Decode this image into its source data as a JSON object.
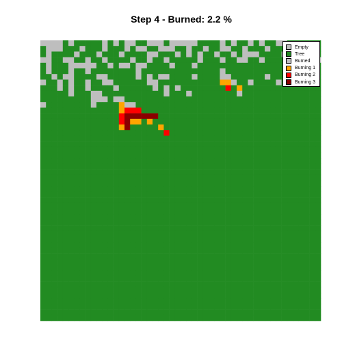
{
  "chart_data": {
    "type": "heatmap",
    "title": "Step 4 - Burned: 2.2 %",
    "step": 4,
    "burned_percent": 2.2,
    "grid_size": [
      50,
      50
    ],
    "state_colors": {
      "empty": "#bebebe",
      "tree": "#228b22",
      "burned": "#bebebe",
      "burning_1": "#ffa500",
      "burning_2": "#ff0000",
      "burning_3": "#8b0000"
    },
    "legend": {
      "placement": "top-right",
      "entries": [
        {
          "label": "Empty",
          "color": "#bebebe"
        },
        {
          "label": "Tree",
          "color": "#228b22"
        },
        {
          "label": "Burned",
          "color": "#bebebe"
        },
        {
          "label": "Burning 1",
          "color": "#ffa500"
        },
        {
          "label": "Burning 2",
          "color": "#ff0000"
        },
        {
          "label": "Burning 3",
          "color": "#8b0000"
        }
      ]
    },
    "grid_rows": [
      "EEEETETTTTTETETEETTEEETEEEEETTTTETETTETETTEETTTTTT",
      "TEEETTTETTTETTTETEETTEEETTETTETTEETTETTTETTTTTTTTT",
      "TETTTTETTTETTTETTTTEETTTETETETTETTETEEETTTTETTTTTT",
      "EETTEETTETTETTTTETTETTETTTTTETTTETTEETTETTTTETETTE",
      "TETTTEEEEETTETEETEETTTTETTTETTTTTTTTTTTTTTTTTETTTT",
      "TETTTETTETTTTTTTTETTTTTTTTTTTTTTETTTTTTTTTTTTTTTTT",
      "TTETEETTTTEETTTTTETETEETTTTETTTTEETTTTTTETTTTTTTTT",
      "ETTETETTETTEETTTTTTEETTTTTTTTTTTAAETTETTTTETTTTTTT",
      "TTTETETTETTTTETTTTTTETETETTTTTTTTBTATTTTTTTTTTTTTT",
      "TTTTTETTTEETTTTTTTTTTTETTTETTTTTTTTETTTTTTTTTTTTTT",
      "TTTTTTTTTEEETEETTTTTTTTTTTTTTTTTTTTTTTTTTTTTTTTTTT",
      "ETTTTTTTTETTTTAEETTTTTTTTTTTTTTTTTTTTTTTTTTTTTTTTT",
      "TTTTTTTTTTTTTTABBBTTTTTTTTTTTTTTTTTTTTTTTTTTTTTTTT",
      "TTTTTTTTTTTTTTBCCCCCCTTTTTTTTTTTTTTTTTTTTTTTTTTTTT",
      "TTTTTTTTTTTTTTBCAATATTTTTTTTTTTTTTTTTTTTTTTTTTTTTT",
      "TTTTTTTTTTTTTTACTTTTTATTTTTTTTTTTTTTTTTTTTTTTTTTTT",
      "TTTTTTTTTTTTTTTTTTTTTTBTTTTTTTTTTTTTTTTTTTTTTTTTTT",
      "TTTTTTTTTTTTTTTTTTTTTTTTTTTTTTTTTTTTTTTTTTTTTTTTTT",
      "TTTTTTTTTTTTTTTTTTTTTTTTTTTTTTTTTTTTTTTTTTTTTTTTTT",
      "TTTTTTTTTTTTTTTTTTTTTTTTTTTTTTTTTTTTTTTTTTTTTTTTTT",
      "TTTTTTTTTTTTTTTTTTTTTTTTTTTTTTTTTTTTTTTTTTTTTTTTTT",
      "TTTTTTTTTTTTTTTTTTTTTTTTTTTTTTTTTTTTTTTTTTTTTTTTTT",
      "TTTTTTTTTTTTTTTTTTTTTTTTTTTTTTTTTTTTTTTTTTTTTTTTTT",
      "TTTTTTTTTTTTTTTTTTTTTTTTTTTTTTTTTTTTTTTTTTTTTTTTTT",
      "TTTTTTTTTTTTTTTTTTTTTTTTTTTTTTTTTTTTTTTTTTTTTTTTTT",
      "TTTTTTTTTTTTTTTTTTTTTTTTTTTTTTTTTTTTTTTTTTTTTTTTTT",
      "TTTTTTTTTTTTTTTTTTTTTTTTTTTTTTTTTTTTTTTTTTTTTTTTTT",
      "TTTTTTTTTTTTTTTTTTTTTTTTTTTTTTTTTTTTTTTTTTTTTTTTTT",
      "TTTTTTTTTTTTTTTTTTTTTTTTTTTTTTTTTTTTTTTTTTTTTTTTTT",
      "TTTTTTTTTTTTTTTTTTTTTTTTTTTTTTTTTTTTTTTTTTTTTTTTTT",
      "TTTTTTTTTTTTTTTTTTTTTTTTTTTTTTTTTTTTTTTTTTTTTTTTTT",
      "TTTTTTTTTTTTTTTTTTTTTTTTTTTTTTTTTTTTTTTTTTTTTTTTTT",
      "TTTTTTTTTTTTTTTTTTTTTTTTTTTTTTTTTTTTTTTTTTTTTTTTTT",
      "TTTTTTTTTTTTTTTTTTTTTTTTTTTTTTTTTTTTTTTTTTTTTTTTTT",
      "TTTTTTTTTTTTTTTTTTTTTTTTTTTTTTTTTTTTTTTTTTTTTTTTTT",
      "TTTTTTTTTTTTTTTTTTTTTTTTTTTTTTTTTTTTTTTTTTTTTTTTTT",
      "TTTTTTTTTTTTTTTTTTTTTTTTTTTTTTTTTTTTTTTTTTTTTTTTTT",
      "TTTTTTTTTTTTTTTTTTTTTTTTTTTTTTTTTTTTTTTTTTTTTTTTTT",
      "TTTTTTTTTTTTTTTTTTTTTTTTTTTTTTTTTTTTTTTTTTTTTTTTTT",
      "TTTTTTTTTTTTTTTTTTTTTTTTTTTTTTTTTTTTTTTTTTTTTTTTTT",
      "TTTTTTTTTTTTTTTTTTTTTTTTTTTTTTTTTTTTTTTTTTTTTTTTTT",
      "TTTTTTTTTTTTTTTTTTTTTTTTTTTTTTTTTTTTTTTTTTTTTTTTTT",
      "TTTTTTTTTTTTTTTTTTTTTTTTTTTTTTTTTTTTTTTTTTTTTTTTTT",
      "TTTTTTTTTTTTTTTTTTTTTTTTTTTTTTTTTTTTTTTTTTTTTTTTTT",
      "TTTTTTTTTTTTTTTTTTTTTTTTTTTTTTTTTTTTTTTTTTTTTTTTTT",
      "TTTTTTTTTTTTTTTTTTTTTTTTTTTTTTTTTTTTTTTTTTTTTTTTTT",
      "TTTTTTTTTTTTTTTTTTTTTTTTTTTTTTTTTTTTTTTTTTTTTTTTTT",
      "TTTTTTTTTTTTTTTTTTTTTTTTTTTTTTTTTTTTTTTTTTTTTTTTTT",
      "TTTTTTTTTTTTTTTTTTTTTTTTTTTTTTTTTTTTTTTTTTTTTTTTTT",
      "TTTTTTTTTTTTTTTTTTTTTTTTTTTTTTTTTTTTTTTTTTTTTTTTTT"
    ],
    "grid_code_legend": {
      "E": "empty",
      "T": "tree",
      "A": "burning_1",
      "B": "burning_2",
      "C": "burning_3"
    }
  }
}
